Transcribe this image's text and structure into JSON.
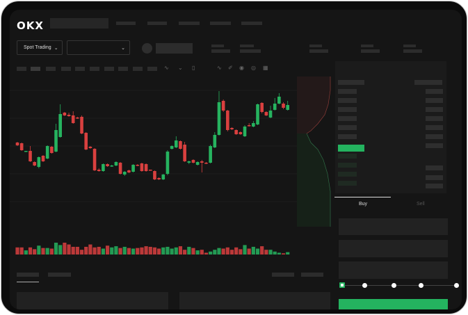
{
  "header": {
    "logo": "OKX"
  },
  "toolbar": {
    "market_type": "Spot Trading",
    "pair_select": ""
  },
  "order_form": {
    "tabs": [
      "Buy",
      "Sell"
    ],
    "active_tab": "Buy",
    "slider_level": 0,
    "slider_stops": 5
  },
  "colors": {
    "up": "#26b35f",
    "down": "#d9403f",
    "accent": "#24b35f",
    "background": "#151515"
  },
  "icons": [
    "chevron-down-icon",
    "indicator-icon",
    "line-tool-icon",
    "pen-icon",
    "magnet-icon",
    "eye-icon",
    "layout-icon"
  ],
  "chart_data": {
    "type": "candlestick",
    "candles": [
      [
        97,
        98,
        92,
        93
      ],
      [
        96,
        97,
        85,
        86
      ],
      [
        84,
        85,
        84,
        85
      ],
      [
        85,
        92,
        69,
        70
      ],
      [
        69,
        70,
        63,
        64
      ],
      [
        62,
        77,
        60,
        76
      ],
      [
        78,
        79,
        69,
        70
      ],
      [
        74,
        93,
        73,
        92
      ],
      [
        91,
        92,
        81,
        82
      ],
      [
        84,
        124,
        83,
        115
      ],
      [
        105,
        152,
        104,
        138
      ],
      [
        140,
        141,
        135,
        136
      ],
      [
        137,
        140,
        134,
        135
      ],
      [
        136,
        142,
        124,
        125
      ],
      [
        133,
        134,
        131,
        132
      ],
      [
        134,
        136,
        109,
        110
      ],
      [
        111,
        112,
        86,
        87
      ],
      [
        91,
        92,
        88,
        89
      ],
      [
        88,
        89,
        56,
        57
      ],
      [
        58,
        60,
        55,
        56
      ],
      [
        56,
        67,
        55,
        66
      ],
      [
        66,
        67,
        62,
        63
      ],
      [
        63,
        65,
        62,
        64
      ],
      [
        64,
        70,
        63,
        69
      ],
      [
        68,
        69,
        51,
        52
      ],
      [
        51,
        56,
        49,
        55
      ],
      [
        57,
        58,
        53,
        54
      ],
      [
        55,
        66,
        54,
        65
      ],
      [
        65,
        66,
        63,
        64
      ],
      [
        67,
        68,
        55,
        56
      ],
      [
        66,
        67,
        55,
        56
      ],
      [
        58,
        58,
        57,
        57
      ],
      [
        56,
        57,
        43,
        44
      ],
      [
        46,
        47,
        43,
        44
      ],
      [
        44,
        52,
        43,
        51
      ],
      [
        52,
        86,
        50,
        84
      ],
      [
        88,
        93,
        87,
        92
      ],
      [
        90,
        106,
        89,
        100
      ],
      [
        99,
        100,
        87,
        88
      ],
      [
        94,
        98,
        69,
        70
      ],
      [
        68,
        71,
        66,
        70
      ],
      [
        72,
        73,
        67,
        68
      ],
      [
        65,
        70,
        64,
        69
      ],
      [
        70,
        72,
        54,
        68
      ],
      [
        68,
        69,
        66,
        67
      ],
      [
        68,
        94,
        67,
        92
      ],
      [
        90,
        112,
        89,
        108
      ],
      [
        108,
        171,
        107,
        155
      ],
      [
        157,
        159,
        141,
        143
      ],
      [
        143,
        144,
        113,
        115
      ],
      [
        118,
        119,
        115,
        116
      ],
      [
        115,
        116,
        108,
        109
      ],
      [
        112,
        113,
        108,
        109
      ],
      [
        106,
        122,
        105,
        120
      ],
      [
        122,
        125,
        120,
        121
      ],
      [
        120,
        128,
        119,
        125
      ],
      [
        123,
        153,
        122,
        152
      ],
      [
        154,
        155,
        139,
        141
      ],
      [
        141,
        142,
        135,
        136
      ],
      [
        133,
        150,
        132,
        143
      ],
      [
        144,
        161,
        143,
        153
      ],
      [
        153,
        168,
        152,
        163
      ],
      [
        153,
        155,
        145,
        147
      ],
      [
        144,
        157,
        143,
        151
      ]
    ],
    "volume": [
      12,
      12,
      7,
      12,
      9,
      15,
      11,
      11,
      10,
      20,
      16,
      20,
      17,
      13,
      13,
      8,
      13,
      17,
      12,
      13,
      10,
      15,
      12,
      14,
      11,
      13,
      11,
      10,
      11,
      12,
      14,
      13,
      12,
      10,
      12,
      13,
      10,
      12,
      14,
      8,
      13,
      11,
      7,
      8,
      3,
      5,
      8,
      11,
      10,
      12,
      8,
      12,
      9,
      16,
      10,
      13,
      10,
      14,
      8,
      8,
      5,
      3,
      2,
      4
    ],
    "grid": true
  }
}
